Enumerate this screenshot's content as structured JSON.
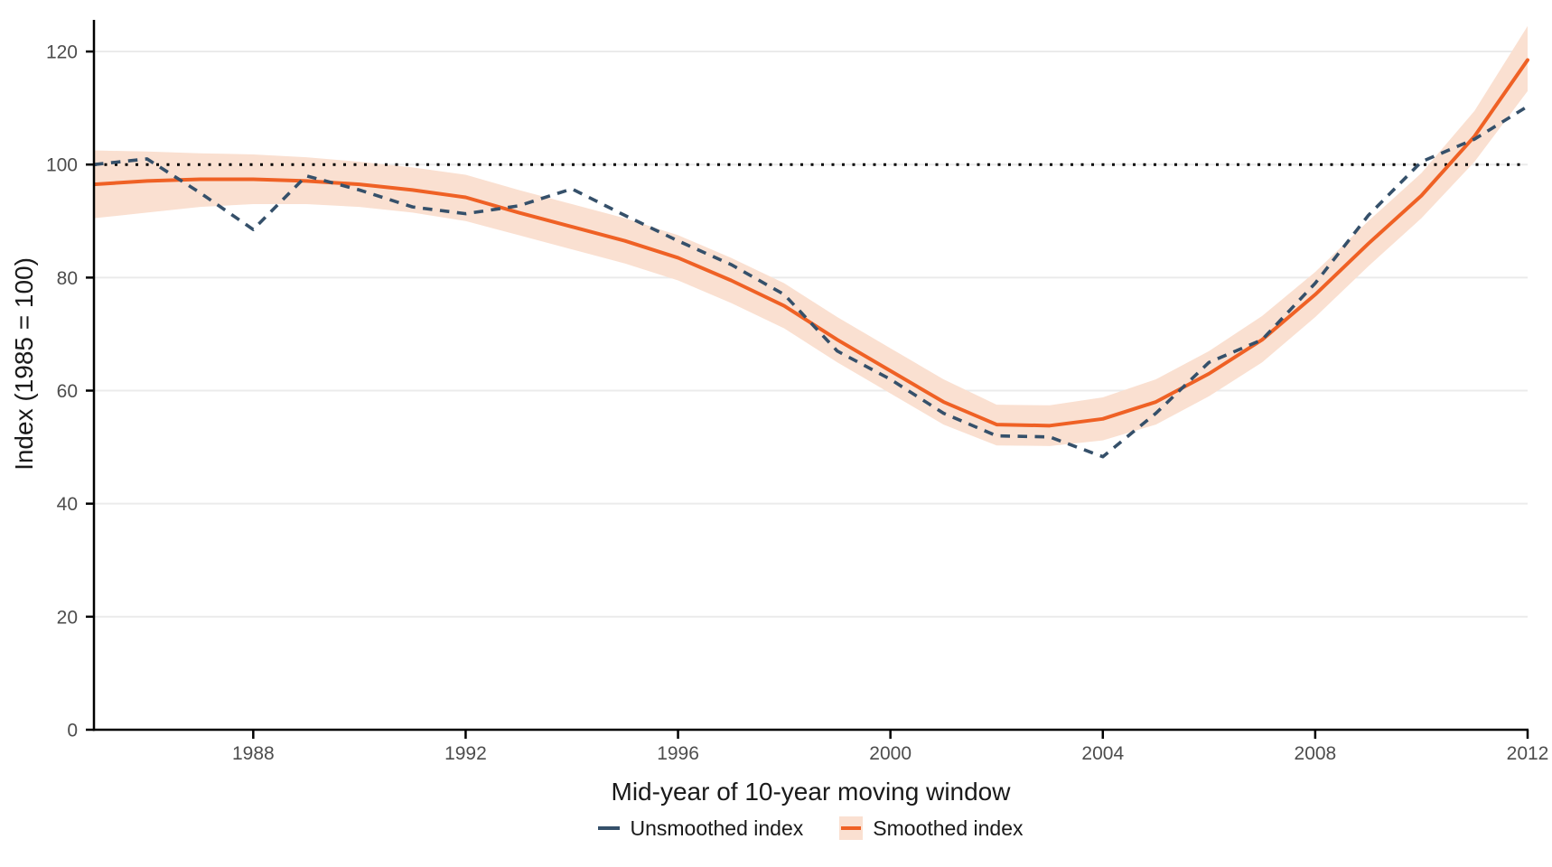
{
  "figure": {
    "background": "#ffffff"
  },
  "chart_data": {
    "type": "line",
    "title": "",
    "xlabel": "Mid-year of 10-year moving window",
    "ylabel": "Index (1985 = 100)",
    "x": [
      1985,
      1986,
      1987,
      1988,
      1989,
      1990,
      1991,
      1992,
      1993,
      1994,
      1995,
      1996,
      1997,
      1998,
      1999,
      2000,
      2001,
      2002,
      2003,
      2004,
      2005,
      2006,
      2007,
      2008,
      2009,
      2010,
      2011,
      2012
    ],
    "series": [
      {
        "name": "Unsmoothed index",
        "style": "dashed",
        "color": "#35506a",
        "values": [
          100,
          101,
          95,
          88.5,
          98,
          95.5,
          92.5,
          91.3,
          92.7,
          95.7,
          91,
          86.5,
          82.3,
          77,
          67,
          62,
          56,
          52,
          51.8,
          48.3,
          56,
          65,
          69,
          79,
          91,
          100.5,
          104.5,
          110.3
        ]
      },
      {
        "name": "Smoothed index",
        "style": "solid",
        "color": "#ef6125",
        "values": [
          96.5,
          97.1,
          97.4,
          97.4,
          97.1,
          96.5,
          95.5,
          94.2,
          91.5,
          89,
          86.5,
          83.5,
          79.5,
          75,
          69,
          63.5,
          58,
          54,
          53.8,
          55,
          58,
          63,
          69,
          77,
          86,
          94.5,
          105,
          118.5
        ],
        "band": {
          "lower": [
            90.5,
            91.5,
            92.5,
            93,
            93,
            92.5,
            91.5,
            90,
            87.5,
            85,
            82.5,
            79.5,
            75.5,
            71,
            65,
            59.5,
            54,
            50.3,
            50.2,
            51.2,
            54,
            59,
            65,
            73,
            82,
            90.5,
            100.5,
            113
          ],
          "upper": [
            102.5,
            102.3,
            102,
            101.8,
            101.3,
            100.5,
            99.5,
            98.2,
            95.5,
            93,
            90.5,
            87.5,
            83.5,
            79,
            73,
            67.5,
            62,
            57.5,
            57.4,
            58.8,
            62,
            67,
            73.2,
            81,
            90,
            98.5,
            109.5,
            124.5
          ],
          "color": "#fae0d1"
        }
      }
    ],
    "reference_line": {
      "y": 100,
      "style": "dotted",
      "color": "#000000"
    },
    "xticks": [
      1988,
      1992,
      1996,
      2000,
      2004,
      2008,
      2012
    ],
    "yticks": [
      0,
      20,
      40,
      60,
      80,
      100,
      120
    ],
    "xlim": [
      1985,
      2012
    ],
    "ylim": [
      0,
      125.6
    ],
    "grid": "horizontal-major",
    "legend_position": "bottom",
    "colors": {
      "grid": "#ebebeb",
      "axis": "#000000",
      "tick_label": "#4d4d4d",
      "axis_title": "#1a1a1a"
    }
  }
}
